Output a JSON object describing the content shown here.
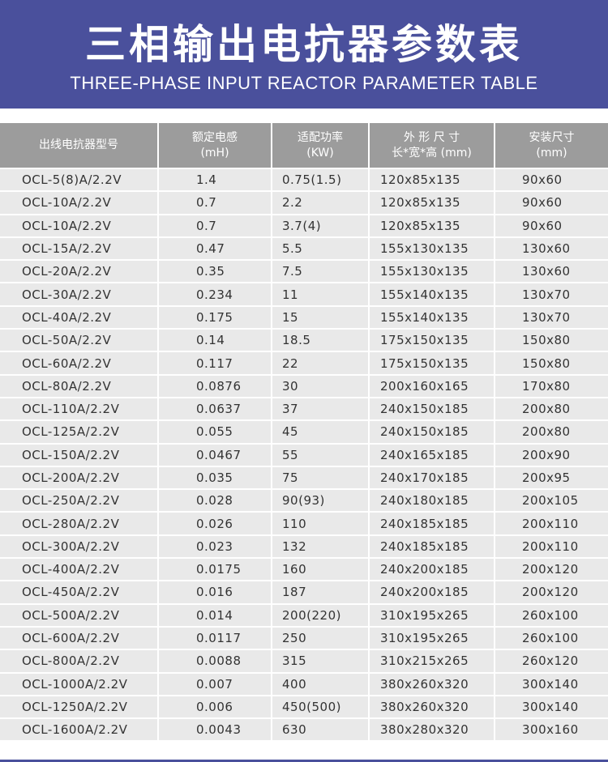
{
  "banner": {
    "title": "三相输出电抗器参数表",
    "subtitle": "THREE-PHASE INPUT REACTOR PARAMETER TABLE",
    "color": "#4a509c"
  },
  "table": {
    "headers": [
      [
        "出线电抗器型号",
        ""
      ],
      [
        "额定电感",
        "(mH)"
      ],
      [
        "适配功率",
        "(KW)"
      ],
      [
        "外 形 尺 寸",
        "长*宽*高 (mm)"
      ],
      [
        "安装尺寸",
        "(mm)"
      ]
    ],
    "rows": [
      [
        "OCL-5(8)A/2.2V",
        "1.4",
        "0.75(1.5)",
        "120x85x135",
        "90x60"
      ],
      [
        "OCL-10A/2.2V",
        "0.7",
        "2.2",
        "120x85x135",
        "90x60"
      ],
      [
        "OCL-10A/2.2V",
        "0.7",
        "3.7(4)",
        "120x85x135",
        "90x60"
      ],
      [
        "OCL-15A/2.2V",
        "0.47",
        "5.5",
        "155x130x135",
        "130x60"
      ],
      [
        "OCL-20A/2.2V",
        "0.35",
        "7.5",
        "155x130x135",
        "130x60"
      ],
      [
        "OCL-30A/2.2V",
        "0.234",
        "11",
        "155x140x135",
        "130x70"
      ],
      [
        "OCL-40A/2.2V",
        "0.175",
        "15",
        "155x140x135",
        "130x70"
      ],
      [
        "OCL-50A/2.2V",
        "0.14",
        "18.5",
        "175x150x135",
        "150x80"
      ],
      [
        "OCL-60A/2.2V",
        "0.117",
        "22",
        "175x150x135",
        "150x80"
      ],
      [
        "OCL-80A/2.2V",
        "0.0876",
        "30",
        "200x160x165",
        "170x80"
      ],
      [
        "OCL-110A/2.2V",
        "0.0637",
        "37",
        "240x150x185",
        "200x80"
      ],
      [
        "OCL-125A/2.2V",
        "0.055",
        "45",
        "240x150x185",
        "200x80"
      ],
      [
        "OCL-150A/2.2V",
        "0.0467",
        "55",
        "240x165x185",
        "200x90"
      ],
      [
        "OCL-200A/2.2V",
        "0.035",
        "75",
        "240x170x185",
        "200x95"
      ],
      [
        "OCL-250A/2.2V",
        "0.028",
        "90(93)",
        "240x180x185",
        "200x105"
      ],
      [
        "OCL-280A/2.2V",
        "0.026",
        "110",
        "240x185x185",
        "200x110"
      ],
      [
        "OCL-300A/2.2V",
        "0.023",
        "132",
        "240x185x185",
        "200x110"
      ],
      [
        "OCL-400A/2.2V",
        "0.0175",
        "160",
        "240x200x185",
        "200x120"
      ],
      [
        "OCL-450A/2.2V",
        "0.016",
        "187",
        "240x200x185",
        "200x120"
      ],
      [
        "OCL-500A/2.2V",
        "0.014",
        "200(220)",
        "310x195x265",
        "260x100"
      ],
      [
        "OCL-600A/2.2V",
        "0.0117",
        "250",
        "310x195x265",
        "260x100"
      ],
      [
        "OCL-800A/2.2V",
        "0.0088",
        "315",
        "310x215x265",
        "260x120"
      ],
      [
        "OCL-1000A/2.2V",
        "0.007",
        "400",
        "380x260x320",
        "300x140"
      ],
      [
        "OCL-1250A/2.2V",
        "0.006",
        "450(500)",
        "380x260x320",
        "300x140"
      ],
      [
        "OCL-1600A/2.2V",
        "0.0043",
        "630",
        "380x280x320",
        "300x160"
      ]
    ]
  }
}
